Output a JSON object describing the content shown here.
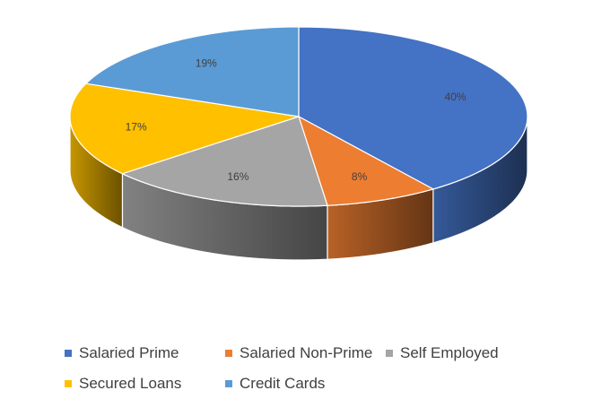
{
  "chart_data": {
    "type": "pie",
    "style": "3d",
    "title": "",
    "categories": [
      "Salaried Prime",
      "Salaried Non-Prime",
      "Self Employed",
      "Secured Loans",
      "Credit Cards"
    ],
    "values": [
      40,
      8,
      16,
      17,
      19
    ],
    "labels": [
      "40%",
      "8%",
      "16%",
      "17%",
      "19%"
    ],
    "colors": [
      "#4472C4",
      "#ED7D31",
      "#A5A5A5",
      "#FFC000",
      "#5B9BD5"
    ],
    "legend_position": "bottom"
  }
}
